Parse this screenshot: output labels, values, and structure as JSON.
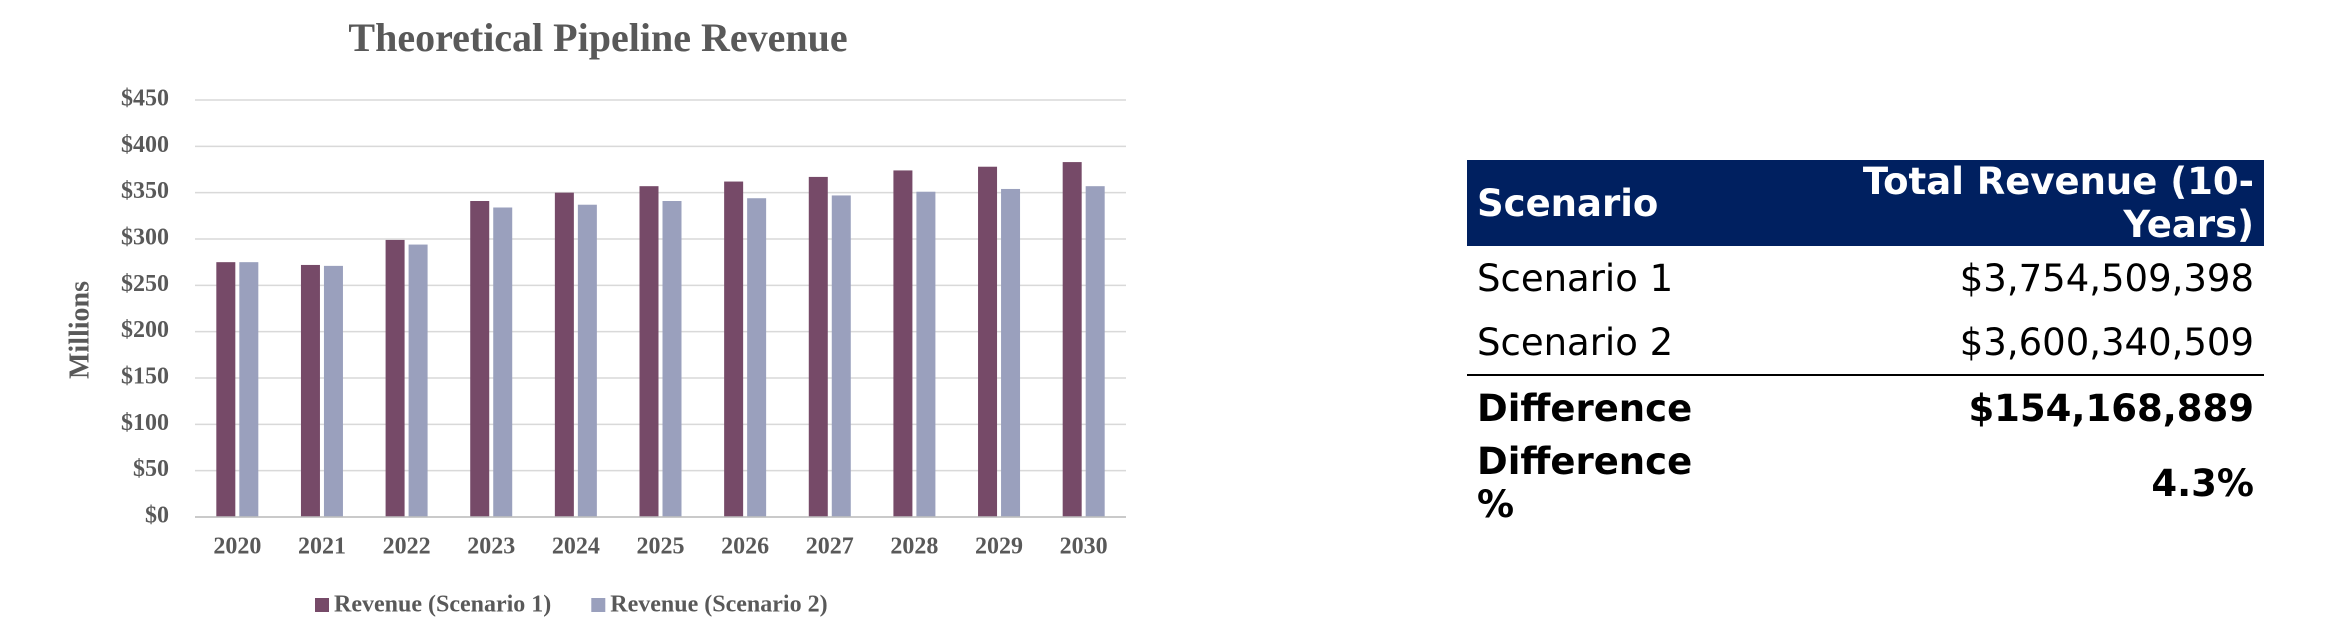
{
  "chart_data": {
    "type": "bar",
    "title": "Theoretical Pipeline Revenue",
    "y_label": "Millions",
    "categories": [
      "2020",
      "2021",
      "2022",
      "2023",
      "2024",
      "2025",
      "2026",
      "2027",
      "2028",
      "2029",
      "2030"
    ],
    "series": [
      {
        "name": "Revenue (Scenario 1)",
        "color": "#764a68",
        "values": [
          275,
          272,
          299,
          341,
          350,
          357,
          362,
          367,
          374,
          378,
          383
        ]
      },
      {
        "name": "Revenue (Scenario 2)",
        "color": "#9aa0bd",
        "values": [
          275,
          271,
          294,
          334,
          337,
          341,
          344,
          347,
          351,
          354,
          357
        ]
      }
    ],
    "ylim": [
      0,
      450
    ],
    "yticks": [
      {
        "value": 0,
        "label": "$0"
      },
      {
        "value": 50,
        "label": "$50"
      },
      {
        "value": 100,
        "label": "$100"
      },
      {
        "value": 150,
        "label": "$150"
      },
      {
        "value": 200,
        "label": "$200"
      },
      {
        "value": 250,
        "label": "$250"
      },
      {
        "value": 300,
        "label": "$300"
      },
      {
        "value": 350,
        "label": "$350"
      },
      {
        "value": 400,
        "label": "$400"
      },
      {
        "value": 450,
        "label": "$450"
      }
    ],
    "grid": true,
    "legend": "bottom"
  },
  "table": {
    "header": [
      "Scenario",
      "Total Revenue (10-Years)"
    ],
    "rows": [
      [
        "Scenario 1",
        "$3,754,509,398"
      ],
      [
        "Scenario 2",
        "$3,600,340,509"
      ],
      [
        "Difference",
        "$154,168,889"
      ],
      [
        "Difference %",
        "4.3%"
      ]
    ]
  }
}
